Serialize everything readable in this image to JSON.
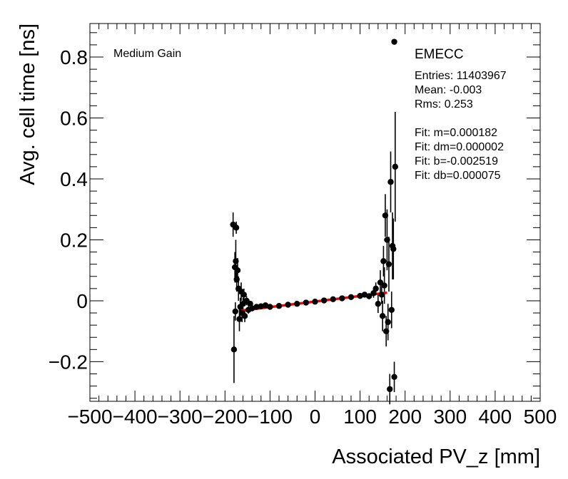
{
  "chart_data": {
    "type": "scatter",
    "title": "",
    "xlabel": "Associated PV_z [mm]",
    "ylabel": "Avg. cell time [ns]",
    "xlim": [
      -500,
      500
    ],
    "ylim": [
      -0.33,
      0.91
    ],
    "x_ticks": [
      -500,
      -400,
      -300,
      -200,
      -100,
      0,
      100,
      200,
      300,
      400,
      500
    ],
    "x_tick_labels": [
      "−500",
      "−400",
      "−300",
      "−200",
      "−100",
      "0",
      "100",
      "200",
      "300",
      "400",
      "500"
    ],
    "y_ticks": [
      -0.2,
      0,
      0.2,
      0.4,
      0.6,
      0.8
    ],
    "y_tick_labels": [
      "−0.2",
      "0",
      "0.2",
      "0.4",
      "0.6",
      "0.8"
    ],
    "grid": false,
    "gain_label": "Medium Gain",
    "stats": {
      "title": "EMECC",
      "lines": [
        "Entries: 11403967",
        "Mean: -0.003",
        "Rms: 0.253",
        "",
        "Fit: m=0.000182",
        "Fit: dm=0.000002",
        "Fit: b=-0.002519",
        "Fit: db=0.000075"
      ]
    },
    "fit": {
      "m": 0.000182,
      "b": -0.002519,
      "x_range": [
        -165,
        160
      ],
      "color": "#ff0000"
    },
    "series": [
      {
        "name": "data",
        "color": "#000000",
        "x": [
          -182,
          -180,
          -178,
          -177,
          -176,
          -175,
          -174,
          -172,
          -170,
          -168,
          -166,
          -164,
          -162,
          -160,
          -158,
          -156,
          -152,
          -148,
          -144,
          -140,
          -130,
          -120,
          -110,
          -100,
          -80,
          -60,
          -40,
          -20,
          0,
          20,
          40,
          60,
          80,
          100,
          110,
          120,
          130,
          135,
          140,
          145,
          148,
          150,
          152,
          154,
          156,
          158,
          160,
          162,
          164,
          166,
          168,
          170,
          172,
          174,
          176,
          178
        ],
        "y": [
          0.25,
          -0.16,
          0.11,
          -0.035,
          0.13,
          0.24,
          0.07,
          0.1,
          0.04,
          -0.06,
          -0.02,
          0.03,
          -0.04,
          -0.01,
          0.02,
          -0.05,
          0.0,
          -0.03,
          -0.01,
          -0.025,
          -0.02,
          -0.018,
          -0.015,
          -0.02,
          -0.017,
          -0.013,
          -0.01,
          -0.006,
          -0.003,
          0.001,
          0.005,
          0.008,
          0.012,
          0.016,
          0.02,
          0.015,
          0.025,
          0.04,
          -0.01,
          0.06,
          0.02,
          -0.05,
          0.13,
          0.05,
          0.28,
          -0.1,
          0.2,
          -0.07,
          0.12,
          -0.29,
          0.39,
          -0.03,
          0.18,
          0.17,
          -0.25,
          0.44
        ],
        "yerr": [
          0.04,
          0.11,
          0.05,
          0.03,
          0.07,
          0.02,
          0.04,
          0.04,
          0.04,
          0.04,
          0.03,
          0.03,
          0.03,
          0.02,
          0.02,
          0.02,
          0.015,
          0.012,
          0.01,
          0.008,
          0.006,
          0.005,
          0.005,
          0.004,
          0.004,
          0.004,
          0.004,
          0.004,
          0.004,
          0.004,
          0.004,
          0.004,
          0.005,
          0.006,
          0.008,
          0.01,
          0.015,
          0.02,
          0.03,
          0.04,
          0.03,
          0.05,
          0.05,
          0.06,
          0.07,
          0.05,
          0.1,
          0.06,
          0.09,
          0.05,
          0.1,
          0.06,
          0.11,
          0.1,
          0.05,
          0.18
        ]
      },
      {
        "name": "outlier",
        "color": "#000000",
        "x": [
          176
        ],
        "y": [
          0.85
        ],
        "yerr": [
          0
        ]
      }
    ]
  }
}
